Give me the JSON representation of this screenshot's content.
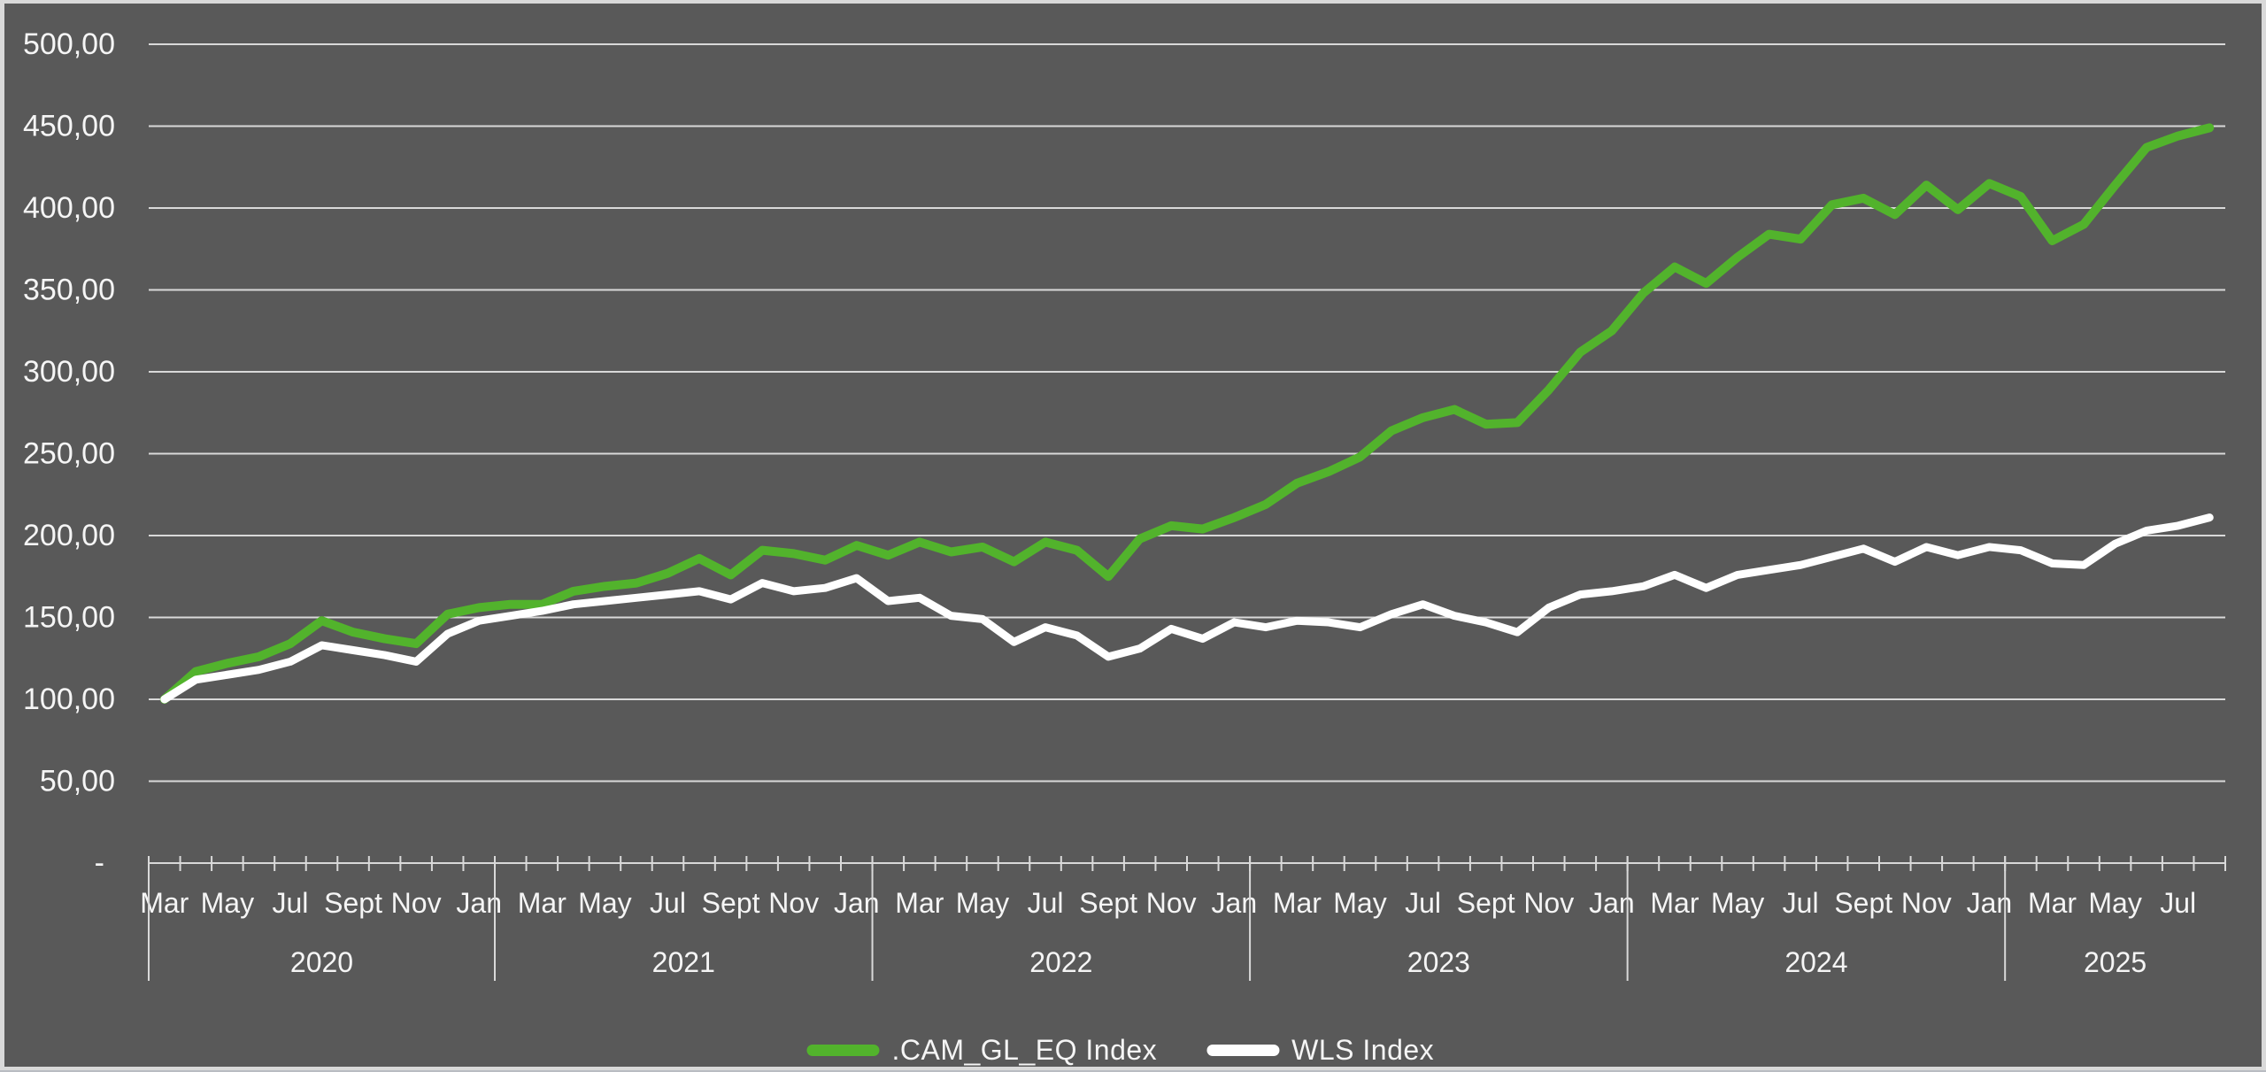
{
  "chart_data": {
    "type": "line",
    "title": "",
    "background_color": "#595959",
    "grid_color": "#d9d9d9",
    "text_color": "#f5f5f5",
    "legend_position": "bottom-center",
    "grid": "horizontal",
    "y_axis": {
      "min": 0,
      "max": 500,
      "step": 50,
      "tick_labels": [
        "-",
        "50,00",
        "100,00",
        "150,00",
        "200,00",
        "250,00",
        "300,00",
        "350,00",
        "400,00",
        "450,00",
        "500,00"
      ]
    },
    "x_axis": {
      "labeled_months": [
        "Jan",
        "Mar",
        "May",
        "Jul",
        "Sept",
        "Nov"
      ],
      "year_group_labels": [
        "2020",
        "2021",
        "2022",
        "2023",
        "2024",
        "2025"
      ]
    },
    "x": [
      "Mar 2020",
      "Apr 2020",
      "May 2020",
      "Jun 2020",
      "Jul 2020",
      "Aug 2020",
      "Sept 2020",
      "Oct 2020",
      "Nov 2020",
      "Dec 2020",
      "Jan 2021",
      "Feb 2021",
      "Mar 2021",
      "Apr 2021",
      "May 2021",
      "Jun 2021",
      "Jul 2021",
      "Aug 2021",
      "Sept 2021",
      "Oct 2021",
      "Nov 2021",
      "Dec 2021",
      "Jan 2022",
      "Feb 2022",
      "Mar 2022",
      "Apr 2022",
      "May 2022",
      "Jun 2022",
      "Jul 2022",
      "Aug 2022",
      "Sept 2022",
      "Oct 2022",
      "Nov 2022",
      "Dec 2022",
      "Jan 2023",
      "Feb 2023",
      "Mar 2023",
      "Apr 2023",
      "May 2023",
      "Jun 2023",
      "Jul 2023",
      "Aug 2023",
      "Sept 2023",
      "Oct 2023",
      "Nov 2023",
      "Dec 2023",
      "Jan 2024",
      "Feb 2024",
      "Mar 2024",
      "Apr 2024",
      "May 2024",
      "Jun 2024",
      "Jul 2024",
      "Aug 2024",
      "Sept 2024",
      "Oct 2024",
      "Nov 2024",
      "Dec 2024",
      "Jan 2025",
      "Feb 2025",
      "Mar 2025",
      "Apr 2025",
      "May 2025",
      "Jun 2025",
      "Jul 2025",
      "Aug 2025"
    ],
    "series": [
      {
        "name": ".CAM_GL_EQ Index",
        "color": "#52b32c",
        "stroke_width": 10,
        "values": [
          100,
          117,
          122,
          126,
          134,
          148,
          141,
          137,
          134,
          152,
          156,
          158,
          158,
          166,
          169,
          171,
          177,
          186,
          176,
          191,
          189,
          185,
          194,
          188,
          196,
          190,
          193,
          184,
          196,
          191,
          175,
          198,
          206,
          204,
          211,
          219,
          232,
          239,
          248,
          264,
          272,
          277,
          268,
          269,
          289,
          312,
          325,
          348,
          364,
          354,
          370,
          384,
          381,
          402,
          406,
          396,
          414,
          399,
          415,
          407,
          380,
          390,
          414,
          437,
          444,
          449
        ]
      },
      {
        "name": "WLS Index",
        "color": "#ffffff",
        "stroke_width": 9,
        "values": [
          100,
          112,
          115,
          118,
          123,
          133,
          130,
          127,
          123,
          140,
          148,
          151,
          154,
          158,
          160,
          162,
          164,
          166,
          161,
          171,
          166,
          168,
          174,
          160,
          162,
          151,
          149,
          135,
          144,
          139,
          126,
          131,
          143,
          137,
          147,
          144,
          148,
          147,
          144,
          152,
          158,
          151,
          147,
          141,
          156,
          164,
          166,
          169,
          176,
          168,
          176,
          179,
          182,
          187,
          192,
          184,
          193,
          188,
          193,
          191,
          183,
          182,
          195,
          203,
          206,
          211
        ]
      }
    ]
  },
  "legend": {
    "items": [
      {
        "label": ".CAM_GL_EQ Index"
      },
      {
        "label": "WLS Index"
      }
    ]
  }
}
